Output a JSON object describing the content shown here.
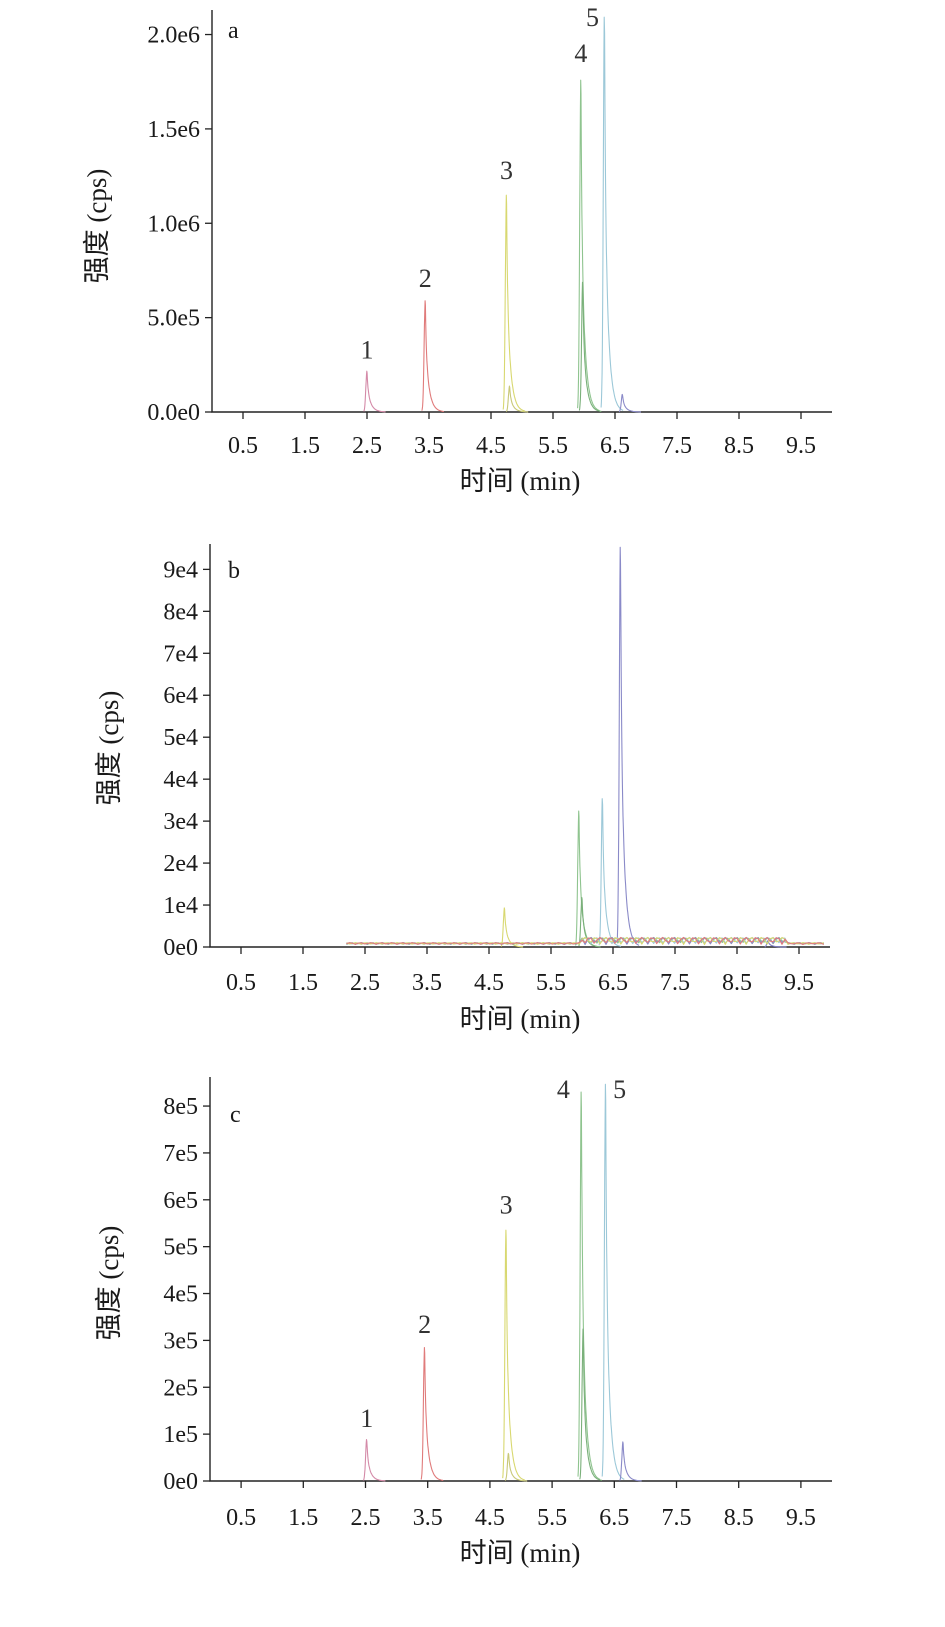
{
  "chart_data": [
    {
      "type": "line",
      "panel": "a",
      "xlabel": "时间 (min)",
      "ylabel": "强度 (cps)",
      "xlim": [
        0,
        10
      ],
      "ylim": [
        0,
        2130000
      ],
      "xticks": [
        0.5,
        1.5,
        2.5,
        3.5,
        4.5,
        5.5,
        6.5,
        7.5,
        8.5,
        9.5
      ],
      "xtick_labels": [
        "0.5",
        "1.5",
        "2.5",
        "3.5",
        "4.5",
        "5.5",
        "6.5",
        "7.5",
        "8.5",
        "9.5"
      ],
      "yticks": [
        0,
        500000,
        1000000,
        1500000,
        2000000
      ],
      "ytick_labels": [
        "0.0e0",
        "5.0e5",
        "1.0e6",
        "1.5e6",
        "2.0e6"
      ],
      "grid": false,
      "peaks": [
        {
          "label": "1",
          "t": 2.5,
          "height": 220000,
          "color": "#d48aa8"
        },
        {
          "label": "2",
          "t": 3.44,
          "height": 600000,
          "color": "#e07b7b"
        },
        {
          "label": "3",
          "t": 4.75,
          "height": 1170000,
          "color": "#d8d870"
        },
        {
          "label": "4",
          "t": 5.95,
          "height": 1790000,
          "color": "#8fc48f"
        },
        {
          "label": "5",
          "t": 6.33,
          "height": 2130000,
          "color": "#9cc8d8"
        }
      ],
      "minor_peaks": [
        {
          "t": 6.62,
          "height": 95000,
          "color": "#8a8ac8"
        },
        {
          "t": 4.8,
          "height": 140000,
          "color": "#c8c878"
        },
        {
          "t": 5.98,
          "height": 700000,
          "color": "#7ab07a"
        }
      ]
    },
    {
      "type": "line",
      "panel": "b",
      "xlabel": "时间 (min)",
      "ylabel": "强度 (cps)",
      "xlim": [
        0,
        10
      ],
      "ylim": [
        0,
        97000
      ],
      "xticks": [
        0.5,
        1.5,
        2.5,
        3.5,
        4.5,
        5.5,
        6.5,
        7.5,
        8.5,
        9.5
      ],
      "xtick_labels": [
        "0.5",
        "1.5",
        "2.5",
        "3.5",
        "4.5",
        "5.5",
        "6.5",
        "7.5",
        "8.5",
        "9.5"
      ],
      "yticks": [
        0,
        10000,
        20000,
        30000,
        40000,
        50000,
        60000,
        70000,
        80000,
        90000
      ],
      "ytick_labels": [
        "0e0",
        "1e4",
        "2e4",
        "3e4",
        "4e4",
        "5e4",
        "6e4",
        "7e4",
        "8e4",
        "9e4"
      ],
      "grid": false,
      "peaks": [
        {
          "t": 4.75,
          "height": 9500,
          "color": "#d8d870"
        },
        {
          "t": 5.95,
          "height": 33000,
          "color": "#8fc48f"
        },
        {
          "t": 6.33,
          "height": 36000,
          "color": "#9cc8d8"
        },
        {
          "t": 6.62,
          "height": 97000,
          "color": "#8a8ac8"
        },
        {
          "t": 6.0,
          "height": 12000,
          "color": "#7ab07a"
        },
        {
          "t": 9.0,
          "height": 1500,
          "color": "#7a7ac0"
        }
      ]
    },
    {
      "type": "line",
      "panel": "c",
      "xlabel": "时间 (min)",
      "ylabel": "强度 (cps)",
      "xlim": [
        0,
        10
      ],
      "ylim": [
        0,
        862000
      ],
      "xticks": [
        0.5,
        1.5,
        2.5,
        3.5,
        4.5,
        5.5,
        6.5,
        7.5,
        8.5,
        9.5
      ],
      "xtick_labels": [
        "0.5",
        "1.5",
        "2.5",
        "3.5",
        "4.5",
        "5.5",
        "6.5",
        "7.5",
        "8.5",
        "9.5"
      ],
      "yticks": [
        0,
        100000,
        200000,
        300000,
        400000,
        500000,
        600000,
        700000,
        800000
      ],
      "ytick_labels": [
        "0e0",
        "1e5",
        "2e5",
        "3e5",
        "4e5",
        "5e5",
        "6e5",
        "7e5",
        "8e5"
      ],
      "grid": false,
      "peaks": [
        {
          "label": "1",
          "t": 2.52,
          "height": 90000,
          "color": "#d48aa8"
        },
        {
          "label": "2",
          "t": 3.45,
          "height": 290000,
          "color": "#e07b7b"
        },
        {
          "label": "3",
          "t": 4.76,
          "height": 545000,
          "color": "#d8d870"
        },
        {
          "label": "4",
          "t": 5.97,
          "height": 845000,
          "color": "#8fc48f"
        },
        {
          "label": "5",
          "t": 6.36,
          "height": 862000,
          "color": "#9cc8d8"
        }
      ],
      "minor_peaks": [
        {
          "t": 6.64,
          "height": 85000,
          "color": "#8a8ac8"
        },
        {
          "t": 4.8,
          "height": 60000,
          "color": "#c8c878"
        },
        {
          "t": 6.0,
          "height": 330000,
          "color": "#7ab07a"
        }
      ]
    }
  ]
}
